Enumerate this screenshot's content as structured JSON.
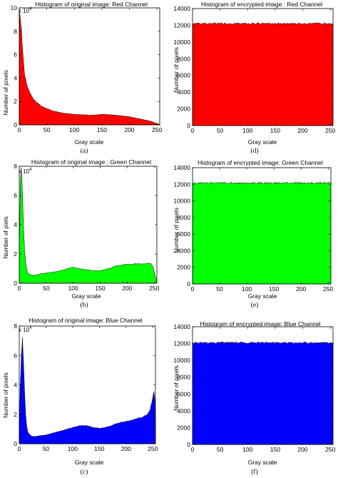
{
  "chart_data": [
    {
      "id": "a",
      "type": "area",
      "title": "Histogram of original image: Red Channel",
      "xlabel": "Gray scale",
      "ylabel": "Number of pixels",
      "caption": "(a)",
      "color": "#ff0000",
      "multiplier_base": "x 10",
      "multiplier_exp": "4",
      "xlim": [
        0,
        255
      ],
      "ylim": [
        0,
        100000
      ],
      "xticks": [
        0,
        50,
        100,
        150,
        200,
        250
      ],
      "yticks": [
        0,
        20000,
        40000,
        60000,
        80000,
        100000
      ],
      "ytick_labels": [
        "0",
        "2",
        "4",
        "6",
        "8",
        "10"
      ],
      "x": [
        0,
        2,
        4,
        6,
        8,
        10,
        14,
        18,
        22,
        26,
        30,
        40,
        50,
        60,
        70,
        80,
        90,
        100,
        110,
        120,
        130,
        140,
        150,
        160,
        170,
        180,
        190,
        200,
        210,
        220,
        230,
        240,
        245,
        250,
        255
      ],
      "values": [
        95000,
        92000,
        80000,
        65000,
        52000,
        42000,
        34000,
        29000,
        25000,
        22000,
        20000,
        16000,
        14000,
        12000,
        11000,
        10000,
        9500,
        9000,
        8800,
        8500,
        8300,
        8500,
        9000,
        8800,
        8500,
        8000,
        7500,
        7000,
        6000,
        5000,
        4000,
        3000,
        2000,
        1000,
        500
      ]
    },
    {
      "id": "d",
      "type": "area",
      "title": "Histogram of encrypted image : Red Channel",
      "xlabel": "Gray scale",
      "ylabel": "Number of pixels",
      "caption": "(d)",
      "color": "#ff0000",
      "xlim": [
        0,
        255
      ],
      "ylim": [
        0,
        14000
      ],
      "xticks": [
        0,
        50,
        100,
        150,
        200,
        250
      ],
      "yticks": [
        0,
        2000,
        4000,
        6000,
        8000,
        10000,
        12000,
        14000
      ],
      "ytick_labels": [
        "0",
        "2000",
        "4000",
        "6000",
        "8000",
        "10000",
        "12000",
        "14000"
      ],
      "x": [
        0,
        255
      ],
      "values": [
        12200,
        12200
      ],
      "noise": 120
    },
    {
      "id": "b",
      "type": "area",
      "title": "Histogram of original image : Green Channel",
      "xlabel": "Gray scale",
      "ylabel": "Number of piels",
      "caption": "(b)",
      "color": "#00ff00",
      "multiplier_base": "x 10",
      "multiplier_exp": "4",
      "xlim": [
        0,
        255
      ],
      "ylim": [
        0,
        80000
      ],
      "xticks": [
        0,
        50,
        100,
        150,
        200,
        250
      ],
      "yticks": [
        0,
        20000,
        40000,
        60000,
        80000
      ],
      "ytick_labels": [
        "0",
        "2",
        "4",
        "6",
        "8"
      ],
      "x": [
        0,
        2,
        4,
        6,
        8,
        10,
        12,
        14,
        16,
        20,
        25,
        30,
        40,
        50,
        60,
        70,
        80,
        90,
        100,
        110,
        120,
        130,
        140,
        150,
        160,
        170,
        180,
        190,
        200,
        210,
        220,
        230,
        240,
        245,
        248,
        252,
        255
      ],
      "values": [
        20000,
        70000,
        78000,
        60000,
        38000,
        22000,
        14000,
        9000,
        7000,
        6000,
        5500,
        5500,
        6500,
        7000,
        7500,
        8000,
        9000,
        10000,
        11000,
        10000,
        9500,
        9000,
        8500,
        8500,
        9500,
        10500,
        12000,
        12500,
        13000,
        13000,
        13500,
        13000,
        14000,
        13000,
        11000,
        5000,
        1000
      ]
    },
    {
      "id": "e",
      "type": "area",
      "title": "Histogram of encrypted image: Green Channel",
      "xlabel": "Gray scale",
      "ylabel": "Number of pixels",
      "caption": "(e)",
      "color": "#00ff00",
      "xlim": [
        0,
        255
      ],
      "ylim": [
        0,
        14000
      ],
      "xticks": [
        0,
        50,
        100,
        150,
        200,
        250
      ],
      "yticks": [
        0,
        2000,
        4000,
        6000,
        8000,
        10000,
        12000,
        14000
      ],
      "ytick_labels": [
        "0",
        "2000",
        "4000",
        "6000",
        "8000",
        "10000",
        "12000",
        "14000"
      ],
      "x": [
        0,
        255
      ],
      "values": [
        12150,
        12150
      ],
      "noise": 120
    },
    {
      "id": "c",
      "type": "area",
      "title": "Histogram of original image: Blue Channel",
      "xlabel": "Gray scale",
      "ylabel": "Number of pixels",
      "caption": "(c)",
      "color": "#0000ff",
      "multiplier_base": "x 10",
      "multiplier_exp": "4",
      "xlim": [
        0,
        255
      ],
      "ylim": [
        0,
        80000
      ],
      "xticks": [
        0,
        50,
        100,
        150,
        200,
        250
      ],
      "yticks": [
        0,
        20000,
        40000,
        60000,
        80000
      ],
      "ytick_labels": [
        "0",
        "2",
        "4",
        "6",
        "8"
      ],
      "x": [
        0,
        2,
        4,
        6,
        8,
        10,
        12,
        14,
        16,
        20,
        25,
        30,
        40,
        50,
        60,
        70,
        80,
        90,
        100,
        110,
        120,
        130,
        140,
        150,
        160,
        170,
        180,
        190,
        200,
        210,
        220,
        230,
        235,
        240,
        245,
        248,
        250,
        252,
        254,
        255
      ],
      "values": [
        10000,
        40000,
        60000,
        72000,
        55000,
        35000,
        20000,
        12000,
        8000,
        6000,
        5000,
        5000,
        5500,
        6000,
        7000,
        8000,
        9000,
        10000,
        11000,
        12000,
        12500,
        12000,
        11000,
        10500,
        11000,
        12000,
        13500,
        14500,
        15000,
        16000,
        17000,
        18000,
        19000,
        20000,
        23000,
        28000,
        32000,
        35000,
        30000,
        10000
      ]
    },
    {
      "id": "f",
      "type": "area",
      "title": "Histogram of encrypted image: Blue Channel",
      "xlabel": "Gray scale",
      "ylabel": "Number of pixels",
      "caption": "(f)",
      "color": "#0000ff",
      "xlim": [
        0,
        255
      ],
      "ylim": [
        0,
        14000
      ],
      "xticks": [
        0,
        50,
        100,
        150,
        200,
        250
      ],
      "yticks": [
        0,
        2000,
        4000,
        6000,
        8000,
        10000,
        12000,
        14000
      ],
      "ytick_labels": [
        "0",
        "2000",
        "4000",
        "6000",
        "8000",
        "10000",
        "12000",
        "14000"
      ],
      "x": [
        0,
        255
      ],
      "values": [
        12100,
        12100
      ],
      "noise": 120
    }
  ]
}
